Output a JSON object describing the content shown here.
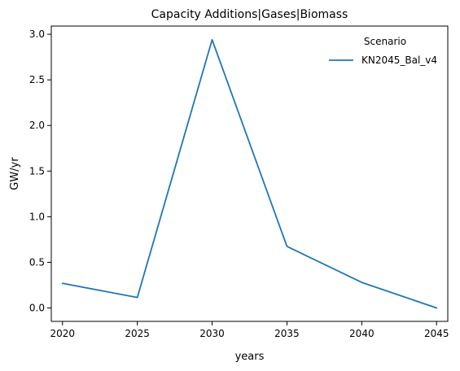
{
  "chart_data": {
    "type": "line",
    "title": "Capacity Additions|Gases|Biomass",
    "xlabel": "years",
    "ylabel": "GW/yr",
    "x": [
      2020,
      2025,
      2030,
      2035,
      2040,
      2045
    ],
    "xticks": [
      "2020",
      "2025",
      "2030",
      "2035",
      "2040",
      "2045"
    ],
    "yticks": [
      "0.0",
      "0.5",
      "1.0",
      "1.5",
      "2.0",
      "2.5",
      "3.0"
    ],
    "xlim": [
      2019.25,
      2045.75
    ],
    "ylim": [
      -0.147,
      3.09
    ],
    "grid": false,
    "legend": {
      "title": "Scenario",
      "placement": "top-right"
    },
    "series": [
      {
        "name": "KN2045_Bal_v4",
        "color": "#1f77b4",
        "values": [
          0.27,
          0.115,
          2.94,
          0.675,
          0.28,
          0.0
        ]
      }
    ]
  }
}
